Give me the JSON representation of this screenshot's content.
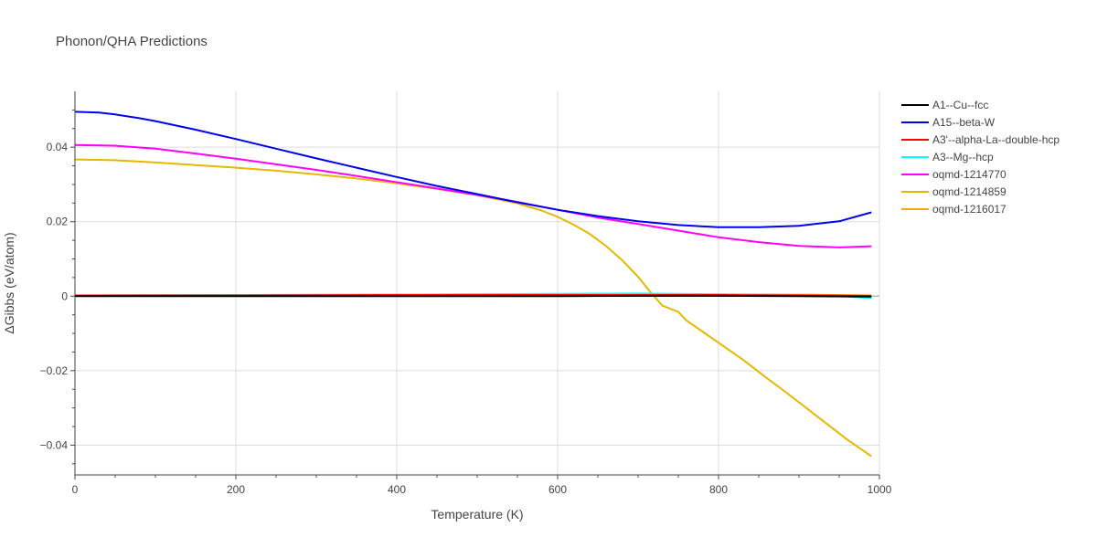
{
  "chart_data": {
    "type": "line",
    "title": "Phonon/QHA Predictions",
    "xlabel": "Temperature (K)",
    "ylabel": "ΔGibbs (eV/atom)",
    "xlim": [
      0,
      1000
    ],
    "ylim": [
      -0.048,
      0.055
    ],
    "x_ticks": [
      0,
      200,
      400,
      600,
      800,
      1000
    ],
    "x_tick_labels": [
      "0",
      "200",
      "400",
      "600",
      "800",
      "1000"
    ],
    "y_ticks": [
      -0.04,
      -0.02,
      0,
      0.02,
      0.04
    ],
    "y_tick_labels": [
      "−0.04",
      "−0.02",
      "0",
      "0.02",
      "0.04"
    ],
    "grid": true,
    "legend_position": "top-right",
    "series": [
      {
        "name": "A1--Cu--fcc",
        "color": "#000000",
        "x": [
          0,
          200,
          400,
          600,
          700,
          800,
          900,
          990
        ],
        "y": [
          0,
          0,
          0,
          0,
          0.0001,
          0.0001,
          0,
          -0.0001
        ]
      },
      {
        "name": "A15--beta-W",
        "color": "#0000ee",
        "x": [
          0,
          30,
          50,
          80,
          100,
          150,
          200,
          250,
          300,
          350,
          400,
          450,
          500,
          550,
          600,
          650,
          700,
          750,
          800,
          850,
          900,
          950,
          990
        ],
        "y": [
          0.0495,
          0.0493,
          0.0488,
          0.0478,
          0.047,
          0.0447,
          0.0422,
          0.0396,
          0.037,
          0.0345,
          0.032,
          0.0296,
          0.0274,
          0.0252,
          0.0232,
          0.0215,
          0.0201,
          0.0191,
          0.0185,
          0.0185,
          0.0189,
          0.0201,
          0.0225
        ]
      },
      {
        "name": "A3'--alpha-La--double-hcp",
        "color": "#ff0000",
        "x": [
          0,
          200,
          400,
          600,
          800,
          990
        ],
        "y": [
          0.0002,
          0.0002,
          0.0003,
          0.0003,
          0.0003,
          0.0001
        ]
      },
      {
        "name": "A3--Mg--hcp",
        "color": "#00ffff",
        "x": [
          0,
          200,
          400,
          600,
          700,
          800,
          900,
          950,
          990
        ],
        "y": [
          0.0002,
          0.0003,
          0.0004,
          0.0006,
          0.0007,
          0.0005,
          0.0002,
          0,
          -0.0005
        ]
      },
      {
        "name": "oqmd-1214770",
        "color": "#ff00ff",
        "x": [
          0,
          50,
          100,
          150,
          200,
          250,
          300,
          350,
          400,
          450,
          500,
          550,
          600,
          650,
          700,
          750,
          800,
          850,
          900,
          950,
          990
        ],
        "y": [
          0.0406,
          0.0404,
          0.0396,
          0.0383,
          0.0369,
          0.0354,
          0.0339,
          0.0323,
          0.0306,
          0.0289,
          0.0272,
          0.0253,
          0.0232,
          0.0211,
          0.0194,
          0.0176,
          0.0158,
          0.0145,
          0.0135,
          0.0131,
          0.0134
        ]
      },
      {
        "name": "oqmd-1214859",
        "color": "#e6b800",
        "x": [
          0,
          50,
          100,
          150,
          200,
          250,
          300,
          350,
          400,
          450,
          500,
          550,
          580,
          600,
          620,
          640,
          660,
          680,
          700,
          715,
          730,
          745,
          750,
          760,
          780,
          800,
          830,
          860,
          880,
          900,
          930,
          960,
          990
        ],
        "y": [
          0.0367,
          0.0365,
          0.0359,
          0.0352,
          0.0345,
          0.0337,
          0.0327,
          0.0316,
          0.0303,
          0.0288,
          0.0271,
          0.0249,
          0.023,
          0.0213,
          0.0192,
          0.0167,
          0.0135,
          0.0097,
          0.0052,
          0.0012,
          -0.0025,
          -0.0038,
          -0.0042,
          -0.0065,
          -0.0095,
          -0.0125,
          -0.017,
          -0.022,
          -0.0252,
          -0.0285,
          -0.0335,
          -0.0385,
          -0.043
        ]
      },
      {
        "name": "oqmd-1216017",
        "color": "#ffa500",
        "x": [
          0,
          200,
          400,
          600,
          700,
          800,
          900,
          990
        ],
        "y": [
          0.0002,
          0.0003,
          0.0004,
          0.0005,
          0.0006,
          0.0005,
          0.0004,
          0.0002
        ]
      }
    ]
  }
}
